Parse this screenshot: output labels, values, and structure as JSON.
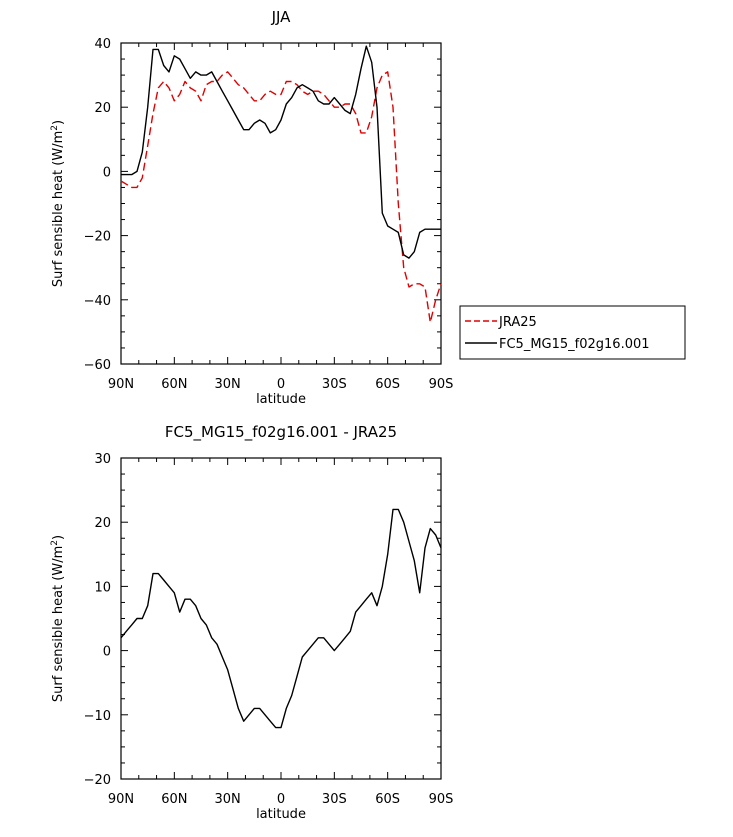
{
  "chart_data": [
    {
      "type": "line",
      "title": "JJA",
      "xlabel": "latitude",
      "ylabel": "Surf sensible heat (W/m²)",
      "ylabel_main": "Surf sensible heat (W/m",
      "ylabel_sup": "2",
      "ylabel_close": ")",
      "xlim": [
        -90,
        90
      ],
      "ylim": [
        -60,
        40
      ],
      "xticks": [
        -90,
        -60,
        -30,
        0,
        30,
        60,
        90
      ],
      "xtick_labels": [
        "90N",
        "60N",
        "30N",
        "0",
        "30S",
        "60S",
        "90S"
      ],
      "yticks": [
        -60,
        -40,
        -20,
        0,
        20,
        40
      ],
      "ytick_labels": [
        "-60",
        "-40",
        "-20",
        "0",
        "20",
        "40"
      ],
      "grid": false,
      "legend_position": "right",
      "legend": [
        "JRA25",
        "FC5_MG15_f02g16.001"
      ],
      "series": [
        {
          "name": "JRA25",
          "color": "#e00000",
          "dashed": true,
          "x": [
            -90,
            -87,
            -84,
            -81,
            -78,
            -75,
            -72,
            -69,
            -66,
            -63,
            -60,
            -57,
            -54,
            -51,
            -48,
            -45,
            -42,
            -39,
            -36,
            -33,
            -30,
            -27,
            -24,
            -21,
            -18,
            -15,
            -12,
            -9,
            -6,
            -3,
            0,
            3,
            6,
            9,
            12,
            15,
            18,
            21,
            24,
            27,
            30,
            33,
            36,
            39,
            42,
            45,
            48,
            51,
            54,
            57,
            60,
            63,
            66,
            69,
            72,
            75,
            78,
            81,
            84,
            87,
            90
          ],
          "y": [
            -3,
            -4,
            -5,
            -5,
            -2,
            8,
            18,
            26,
            28,
            26,
            22,
            24,
            28,
            26,
            25,
            22,
            27,
            28,
            28,
            30,
            31,
            29,
            27,
            26,
            24,
            22,
            22,
            24,
            25,
            24,
            24,
            28,
            28,
            27,
            25,
            24,
            25,
            25,
            24,
            22,
            20,
            20,
            21,
            21,
            18,
            12,
            12,
            17,
            26,
            30,
            31,
            20,
            -10,
            -30,
            -36,
            -35,
            -35,
            -36,
            -47,
            -40,
            -35
          ]
        },
        {
          "name": "FC5_MG15_f02g16.001",
          "color": "#000000",
          "dashed": false,
          "x": [
            -90,
            -87,
            -84,
            -81,
            -78,
            -75,
            -72,
            -69,
            -66,
            -63,
            -60,
            -57,
            -54,
            -51,
            -48,
            -45,
            -42,
            -39,
            -36,
            -33,
            -30,
            -27,
            -24,
            -21,
            -18,
            -15,
            -12,
            -9,
            -6,
            -3,
            0,
            3,
            6,
            9,
            12,
            15,
            18,
            21,
            24,
            27,
            30,
            33,
            36,
            39,
            42,
            45,
            48,
            51,
            54,
            57,
            60,
            63,
            66,
            69,
            72,
            75,
            78,
            81,
            84,
            87,
            90
          ],
          "y": [
            -1,
            -1,
            -1,
            0,
            6,
            20,
            38,
            38,
            33,
            31,
            36,
            35,
            32,
            29,
            31,
            30,
            30,
            31,
            28,
            25,
            22,
            19,
            16,
            13,
            13,
            15,
            16,
            15,
            12,
            13,
            16,
            21,
            23,
            26,
            27,
            26,
            25,
            22,
            21,
            21,
            23,
            21,
            19,
            18,
            24,
            32,
            39,
            34,
            20,
            -13,
            -17,
            -18,
            -19,
            -26,
            -27,
            -25,
            -19,
            -18,
            -18,
            -18,
            -18
          ]
        }
      ]
    },
    {
      "type": "line",
      "title": "FC5_MG15_f02g16.001 - JRA25",
      "xlabel": "latitude",
      "ylabel": "Surf sensible heat (W/m²)",
      "ylabel_main": "Surf sensible heat (W/m",
      "ylabel_sup": "2",
      "ylabel_close": ")",
      "xlim": [
        -90,
        90
      ],
      "ylim": [
        -20,
        30
      ],
      "xticks": [
        -90,
        -60,
        -30,
        0,
        30,
        60,
        90
      ],
      "xtick_labels": [
        "90N",
        "60N",
        "30N",
        "0",
        "30S",
        "60S",
        "90S"
      ],
      "yticks": [
        -20,
        -10,
        0,
        10,
        20,
        30
      ],
      "ytick_labels": [
        "-20",
        "-10",
        "0",
        "10",
        "20",
        "30"
      ],
      "grid": false,
      "series": [
        {
          "color": "#000000",
          "dashed": false,
          "x": [
            -90,
            -87,
            -84,
            -81,
            -78,
            -75,
            -72,
            -69,
            -66,
            -63,
            -60,
            -57,
            -54,
            -51,
            -48,
            -45,
            -42,
            -39,
            -36,
            -33,
            -30,
            -27,
            -24,
            -21,
            -18,
            -15,
            -12,
            -9,
            -6,
            -3,
            0,
            3,
            6,
            9,
            12,
            15,
            18,
            21,
            24,
            27,
            30,
            33,
            36,
            39,
            42,
            45,
            48,
            51,
            54,
            57,
            60,
            63,
            66,
            69,
            72,
            75,
            78,
            81,
            84,
            87,
            90
          ],
          "y": [
            2,
            3,
            4,
            5,
            5,
            7,
            12,
            12,
            11,
            10,
            9,
            6,
            8,
            8,
            7,
            5,
            4,
            2,
            1,
            -1,
            -3,
            -6,
            -9,
            -11,
            -10,
            -9,
            -9,
            -10,
            -11,
            -12,
            -12,
            -9,
            -7,
            -4,
            -1,
            0,
            1,
            2,
            2,
            1,
            0,
            1,
            2,
            3,
            6,
            7,
            8,
            9,
            7,
            10,
            15,
            22,
            22,
            20,
            17,
            14,
            9,
            16,
            19,
            18,
            16
          ]
        }
      ]
    }
  ]
}
